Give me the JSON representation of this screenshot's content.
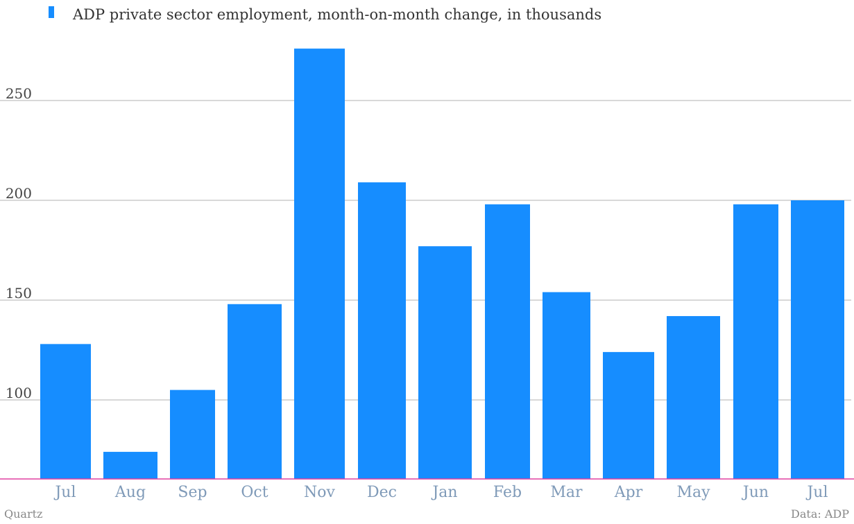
{
  "legend": {
    "label": "ADP private sector employment, month-on-month change, in thousands"
  },
  "footer": {
    "source_left": "Quartz",
    "source_right": "Data: ADP"
  },
  "colors": {
    "bar": "#168dff",
    "grid": "#b0b0b0",
    "baseline": "#e040a0",
    "xtick": "#7f9ab8"
  },
  "chart_data": {
    "type": "bar",
    "categories": [
      "Jul",
      "Aug",
      "Sep",
      "Oct",
      "Nov",
      "Dec",
      "Jan",
      "Feb",
      "Mar",
      "Apr",
      "May",
      "Jun",
      "Jul"
    ],
    "series": [
      {
        "name": "ADP private sector employment, month-on-month change, in thousands",
        "values": [
          128,
          74,
          105,
          148,
          276,
          209,
          177,
          198,
          154,
          124,
          142,
          198,
          200
        ]
      }
    ],
    "yticks": [
      100,
      150,
      200,
      250
    ],
    "ylim": [
      60,
      300
    ],
    "grid": true,
    "legend_position": "top-left"
  }
}
